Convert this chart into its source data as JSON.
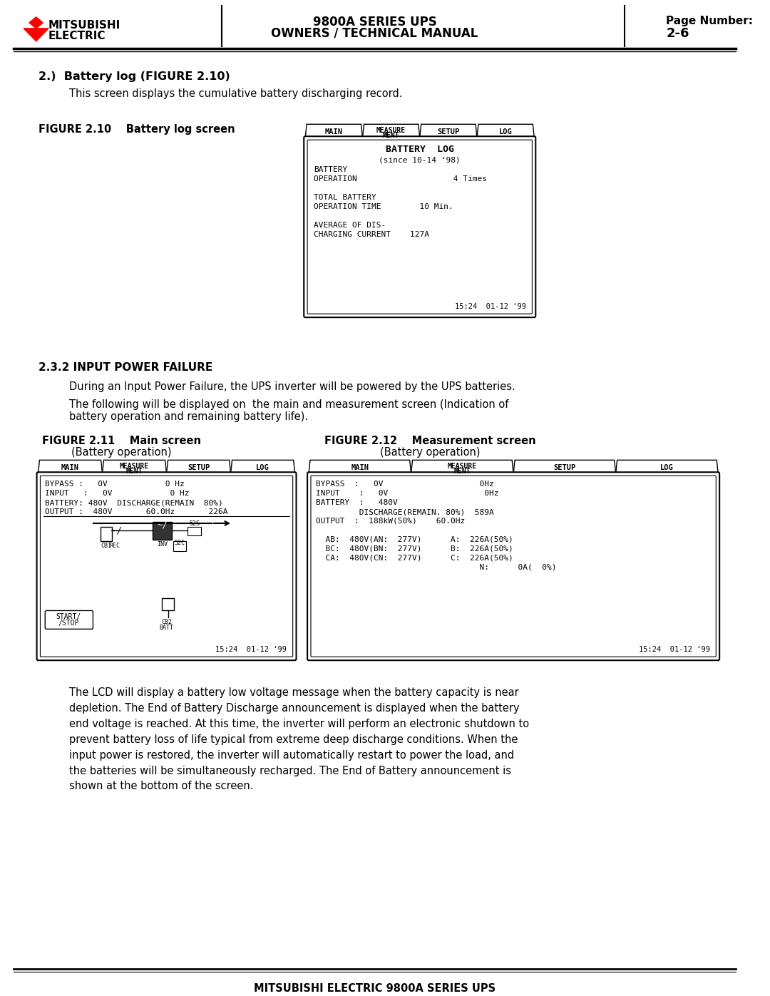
{
  "page_bg": "#ffffff",
  "header": {
    "logo_text1": "MITSUBISHI",
    "logo_text2": "ELECTRIC",
    "center_line1": "9800A SERIES UPS",
    "center_line2": "OWNERS / TECHNICAL MANUAL",
    "right_line1": "Page Number:",
    "right_line2": "2-6"
  },
  "footer_text": "MITSUBISHI ELECTRIC 9800A SERIES UPS",
  "section2_heading": "2.)  Battery log (FIGURE 2.10)",
  "section2_body": "This screen displays the cumulative battery discharging record.",
  "fig210_label": "FIGURE 2.10    Battery log screen",
  "fig210_tabs": [
    "MAIN",
    "MEASURE\nMENT",
    "SETUP",
    "LOG"
  ],
  "fig210_active_tab": "LOG",
  "fig210_title1": "BATTERY  LOG",
  "fig210_title2": "(since 10-14 ‘98)",
  "fig210_lines": [
    "BATTERY",
    "OPERATION                    4 Times",
    "",
    "TOTAL BATTERY",
    "OPERATION TIME        10 Min.",
    "",
    "AVERAGE OF DIS-",
    "CHARGING CURRENT    127A"
  ],
  "fig210_timestamp": "15:24  01-12 ‘99",
  "section232_heading": "2.3.2 INPUT POWER FAILURE",
  "section232_body1": "During an Input Power Failure, the UPS inverter will be powered by the UPS batteries.",
  "section232_body2": "The following will be displayed on  the main and measurement screen (Indication of\nbattery operation and remaining battery life).",
  "fig211_label1": "FIGURE 2.11    Main screen",
  "fig211_label2": "(Battery operation)",
  "fig212_label1": "FIGURE 2.12    Measurement screen",
  "fig212_label2": "(Battery operation)",
  "fig211_tabs": [
    "MAIN",
    "MEASURE\nMENT",
    "SETUP",
    "LOG"
  ],
  "fig211_lines": [
    "BYPASS :   0V            0 Hz",
    "INPUT   :   0V            0 Hz",
    "BATTERY: 480V  DISCHARGE(REMAIN  80%)",
    "OUTPUT :  480V       60.0Hz       226A"
  ],
  "fig211_timestamp": "15:24  01-12 ‘99",
  "fig212_tabs": [
    "MAIN",
    "MEASURE\nMENT",
    "SETUP",
    "LOG"
  ],
  "fig212_lines": [
    "BYPASS  :   0V                    0Hz",
    "INPUT    :   0V                    0Hz",
    "BATTERY  :   480V",
    "         DISCHARGE(REMAIN. 80%)  589A",
    "OUTPUT  :  188kW(50%)    60.0Hz",
    "",
    "  AB:  480V(AN:  277V)      A:  226A(50%)",
    "  BC:  480V(BN:  277V)      B:  226A(50%)",
    "  CA:  480V(CN:  277V)      C:  226A(50%)",
    "                                  N:      0A(  0%)"
  ],
  "fig212_timestamp": "15:24  01-12 ‘99",
  "body_para1": "The LCD will display a battery low voltage message when the battery capacity is near\ndepletion. The End of Battery Discharge announcement is displayed when the battery\nend voltage is reached. At this time, the inverter will perform an electronic shutdown to\nprevent battery loss of life typical from extreme deep discharge conditions. When the\ninput power is restored, the inverter will automatically restart to power the load, and\nthe batteries will be simultaneously recharged. The End of Battery announcement is\nshown at the bottom of the screen."
}
